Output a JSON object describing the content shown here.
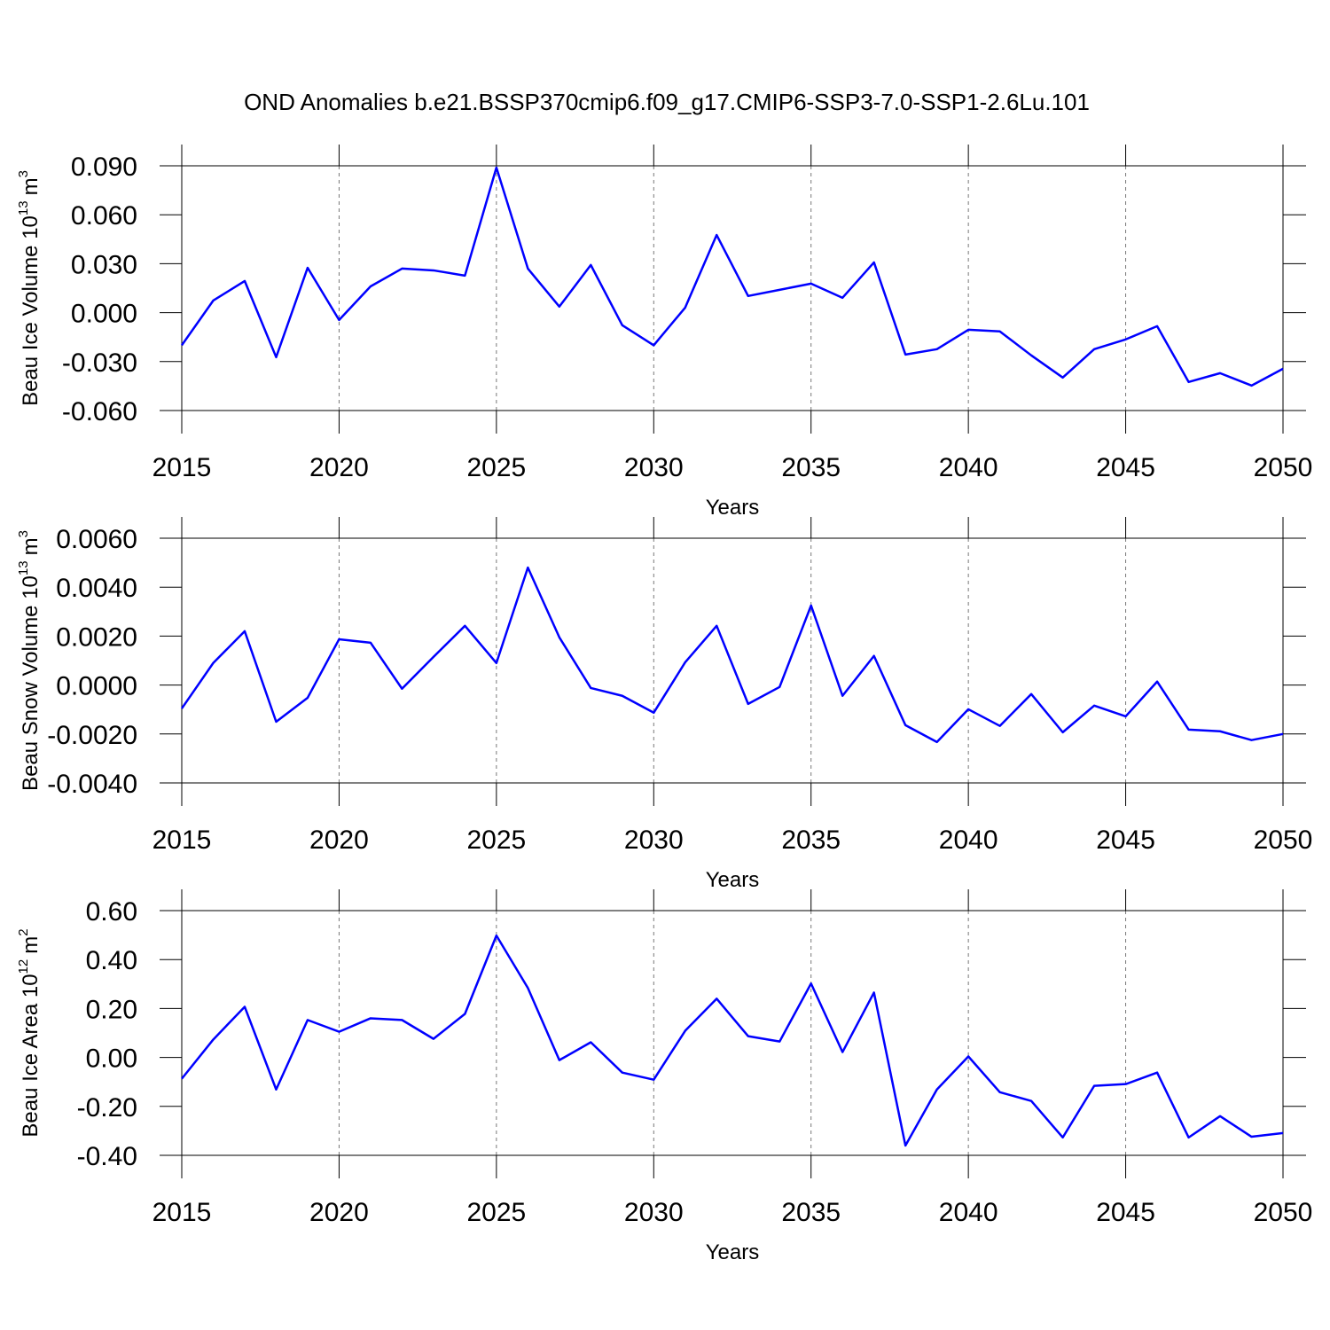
{
  "title": "OND Anomalies b.e21.BSSP370cmip6.f09_g17.CMIP6-SSP3-7.0-SSP1-2.6Lu.101",
  "chart_data": [
    {
      "type": "line",
      "xlabel": "Years",
      "ylabel": [
        "Beau Ice Volume 10",
        "13",
        "m",
        "3"
      ],
      "color": "#0000ff",
      "grid_x": true,
      "x": [
        2015,
        2016,
        2017,
        2018,
        2019,
        2020,
        2021,
        2022,
        2023,
        2024,
        2025,
        2026,
        2027,
        2028,
        2029,
        2030,
        2031,
        2032,
        2033,
        2034,
        2035,
        2036,
        2037,
        2038,
        2039,
        2040,
        2041,
        2042,
        2043,
        2044,
        2045,
        2046,
        2047,
        2048,
        2049,
        2050
      ],
      "values": [
        -0.02,
        0.0074,
        0.0194,
        -0.0273,
        0.0275,
        -0.0045,
        0.0161,
        0.027,
        0.0259,
        0.0227,
        0.0889,
        0.027,
        0.0037,
        0.0292,
        -0.0077,
        -0.02,
        0.0031,
        0.0476,
        0.0102,
        0.014,
        0.0178,
        0.0091,
        0.0308,
        -0.0257,
        -0.0224,
        -0.0105,
        -0.0115,
        -0.0262,
        -0.0398,
        -0.0224,
        -0.0164,
        -0.0083,
        -0.0425,
        -0.0371,
        -0.0447,
        -0.0344
      ],
      "xlim": [
        2015,
        2050
      ],
      "xticks": [
        2015,
        2020,
        2025,
        2030,
        2035,
        2040,
        2045,
        2050
      ],
      "ylim": [
        -0.06,
        0.09
      ],
      "yticks": [
        {
          "value": -0.06,
          "label": "-0.060"
        },
        {
          "value": -0.03,
          "label": "-0.030"
        },
        {
          "value": 0,
          "label": "0.000"
        },
        {
          "value": 0.03,
          "label": "0.030"
        },
        {
          "value": 0.06,
          "label": "0.060"
        },
        {
          "value": 0.09,
          "label": "0.090"
        }
      ]
    },
    {
      "type": "line",
      "xlabel": "Years",
      "ylabel": [
        "Beau Snow Volume 10",
        "13",
        "m",
        "3"
      ],
      "color": "#0000ff",
      "grid_x": true,
      "x": [
        2015,
        2016,
        2017,
        2018,
        2019,
        2020,
        2021,
        2022,
        2023,
        2024,
        2025,
        2026,
        2027,
        2028,
        2029,
        2030,
        2031,
        2032,
        2033,
        2034,
        2035,
        2036,
        2037,
        2038,
        2039,
        2040,
        2041,
        2042,
        2043,
        2044,
        2045,
        2046,
        2047,
        2048,
        2049,
        2050
      ],
      "values": [
        -0.00096,
        0.0009,
        0.0022,
        -0.0015,
        -0.00052,
        0.00187,
        0.00173,
        -0.00015,
        0.00115,
        0.00242,
        0.0009,
        0.0048,
        0.00195,
        -0.00012,
        -0.00044,
        -0.00113,
        0.00093,
        0.00242,
        -0.00077,
        -8e-05,
        0.00325,
        -0.00044,
        0.00119,
        -0.00164,
        -0.00233,
        -0.00099,
        -0.00167,
        -0.00037,
        -0.00193,
        -0.00084,
        -0.00128,
        0.00014,
        -0.00182,
        -0.00189,
        -0.00225,
        -0.002
      ],
      "xlim": [
        2015,
        2050
      ],
      "xticks": [
        2015,
        2020,
        2025,
        2030,
        2035,
        2040,
        2045,
        2050
      ],
      "ylim": [
        -0.004,
        0.006
      ],
      "yticks": [
        {
          "value": -0.004,
          "label": "-0.0040"
        },
        {
          "value": -0.002,
          "label": "-0.0020"
        },
        {
          "value": 0,
          "label": "0.0000"
        },
        {
          "value": 0.002,
          "label": "0.0020"
        },
        {
          "value": 0.004,
          "label": "0.0040"
        },
        {
          "value": 0.006,
          "label": "0.0060"
        }
      ]
    },
    {
      "type": "line",
      "xlabel": "Years",
      "ylabel": [
        "Beau Ice Area 10",
        "12",
        "m",
        "2"
      ],
      "color": "#0000ff",
      "grid_x": true,
      "x": [
        2015,
        2016,
        2017,
        2018,
        2019,
        2020,
        2021,
        2022,
        2023,
        2024,
        2025,
        2026,
        2027,
        2028,
        2029,
        2030,
        2031,
        2032,
        2033,
        2034,
        2035,
        2036,
        2037,
        2038,
        2039,
        2040,
        2041,
        2042,
        2043,
        2044,
        2045,
        2046,
        2047,
        2048,
        2049,
        2050
      ],
      "values": [
        -0.087,
        0.073,
        0.207,
        -0.131,
        0.153,
        0.105,
        0.16,
        0.153,
        0.076,
        0.178,
        0.498,
        0.284,
        -0.011,
        0.062,
        -0.062,
        -0.091,
        0.109,
        0.24,
        0.087,
        0.065,
        0.302,
        0.022,
        0.265,
        -0.36,
        -0.131,
        0.004,
        -0.142,
        -0.178,
        -0.327,
        -0.116,
        -0.109,
        -0.062,
        -0.327,
        -0.24,
        -0.324,
        -0.309
      ],
      "xlim": [
        2015,
        2050
      ],
      "xticks": [
        2015,
        2020,
        2025,
        2030,
        2035,
        2040,
        2045,
        2050
      ],
      "ylim": [
        -0.4,
        0.6
      ],
      "yticks": [
        {
          "value": -0.4,
          "label": "-0.40"
        },
        {
          "value": -0.2,
          "label": "-0.20"
        },
        {
          "value": 0,
          "label": "0.00"
        },
        {
          "value": 0.2,
          "label": "0.20"
        },
        {
          "value": 0.4,
          "label": "0.40"
        },
        {
          "value": 0.6,
          "label": "0.60"
        }
      ]
    }
  ]
}
